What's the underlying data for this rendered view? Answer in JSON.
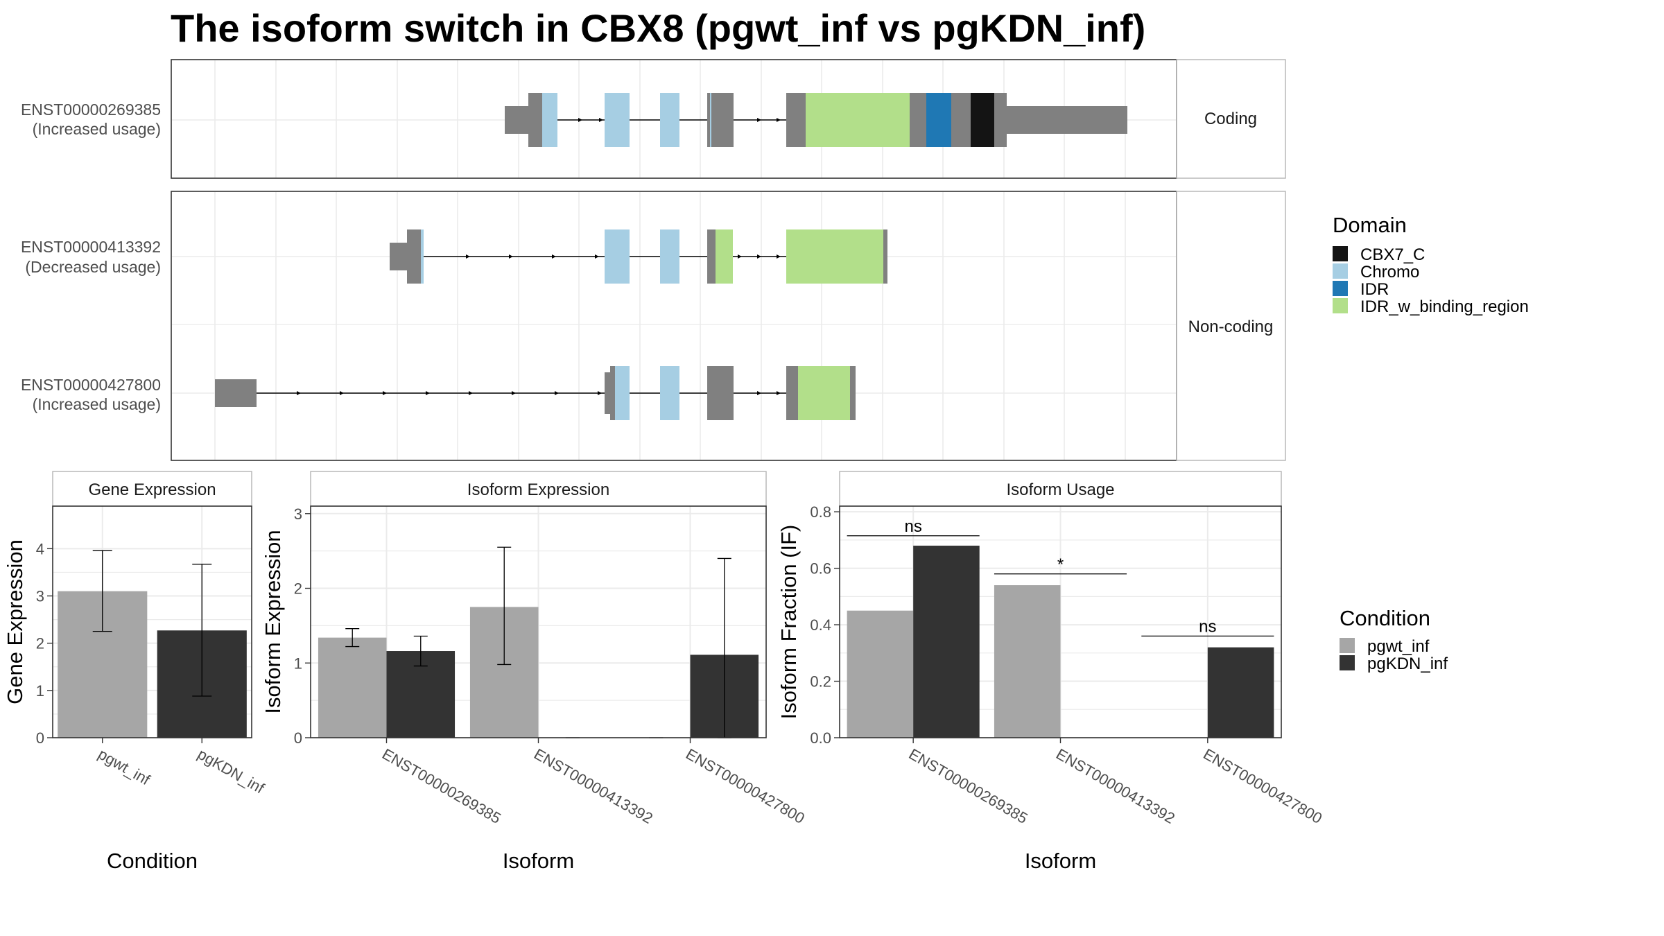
{
  "title": "The isoform switch in CBX8 (pgwt_inf vs pgKDN_inf)",
  "colors": {
    "exon": "#808080",
    "intron": "#000000",
    "CBX7_C": "#141414",
    "Chromo": "#a6cee3",
    "IDR": "#1f78b4",
    "IDR_w_binding_region": "#b2df8a",
    "pgwt_inf": "#a6a6a6",
    "pgKDN_inf": "#333333",
    "panel_border": "#333333",
    "grid": "#ebebeb",
    "strip_bg": "#ffffff"
  },
  "transcripts": {
    "panels": [
      "Coding",
      "Non-coding"
    ],
    "items": [
      {
        "id": "ENST00000269385",
        "usage": "(Increased usage)",
        "panel": "Coding"
      },
      {
        "id": "ENST00000413392",
        "usage": "(Decreased usage)",
        "panel": "Non-coding"
      },
      {
        "id": "ENST00000427800",
        "usage": "(Increased usage)",
        "panel": "Non-coding"
      }
    ]
  },
  "domain_legend": {
    "title": "Domain",
    "entries": [
      "CBX7_C",
      "Chromo",
      "IDR",
      "IDR_w_binding_region"
    ]
  },
  "condition_legend": {
    "title": "Condition",
    "entries": [
      "pgwt_inf",
      "pgKDN_inf"
    ]
  },
  "chart_data": [
    {
      "type": "bar",
      "strip": "Gene Expression",
      "xlabel": "Condition",
      "ylabel": "Gene Expression",
      "categories": [
        "pgwt_inf",
        "pgKDN_inf"
      ],
      "values": [
        3.1,
        2.27
      ],
      "error_low": [
        2.25,
        0.88
      ],
      "error_high": [
        3.96,
        3.67
      ],
      "ylim": [
        0,
        4.9
      ],
      "yticks": [
        0,
        1,
        2,
        3,
        4
      ],
      "grid": true
    },
    {
      "type": "bar",
      "strip": "Isoform Expression",
      "xlabel": "Isoform",
      "ylabel": "Isoform Expression",
      "categories": [
        "ENST00000269385",
        "ENST00000413392",
        "ENST00000427800"
      ],
      "series": [
        {
          "name": "pgwt_inf",
          "values": [
            1.34,
            1.75,
            0
          ],
          "error_low": [
            1.22,
            0.98,
            0
          ],
          "error_high": [
            1.46,
            2.55,
            0
          ]
        },
        {
          "name": "pgKDN_inf",
          "values": [
            1.16,
            0,
            1.11
          ],
          "error_low": [
            0.96,
            0,
            0.0
          ],
          "error_high": [
            1.36,
            0,
            2.4
          ]
        }
      ],
      "ylim": [
        0,
        3.1
      ],
      "yticks": [
        0,
        1,
        2,
        3
      ],
      "grid": true
    },
    {
      "type": "bar",
      "strip": "Isoform Usage",
      "xlabel": "Isoform",
      "ylabel": "Isoform Fraction (IF)",
      "categories": [
        "ENST00000269385",
        "ENST00000413392",
        "ENST00000427800"
      ],
      "series": [
        {
          "name": "pgwt_inf",
          "values": [
            0.45,
            0.54,
            0
          ]
        },
        {
          "name": "pgKDN_inf",
          "values": [
            0.68,
            0,
            0.32
          ]
        }
      ],
      "significance": [
        {
          "category": "ENST00000269385",
          "label": "ns",
          "y": 0.715
        },
        {
          "category": "ENST00000413392",
          "label": "*",
          "y": 0.58
        },
        {
          "category": "ENST00000427800",
          "label": "ns",
          "y": 0.36
        }
      ],
      "ylim": [
        0,
        0.82
      ],
      "yticks": [
        0.0,
        0.2,
        0.4,
        0.6,
        0.8
      ],
      "ytick_labels": [
        "0.0",
        "0.2",
        "0.4",
        "0.6",
        "0.8"
      ],
      "grid": true
    }
  ]
}
